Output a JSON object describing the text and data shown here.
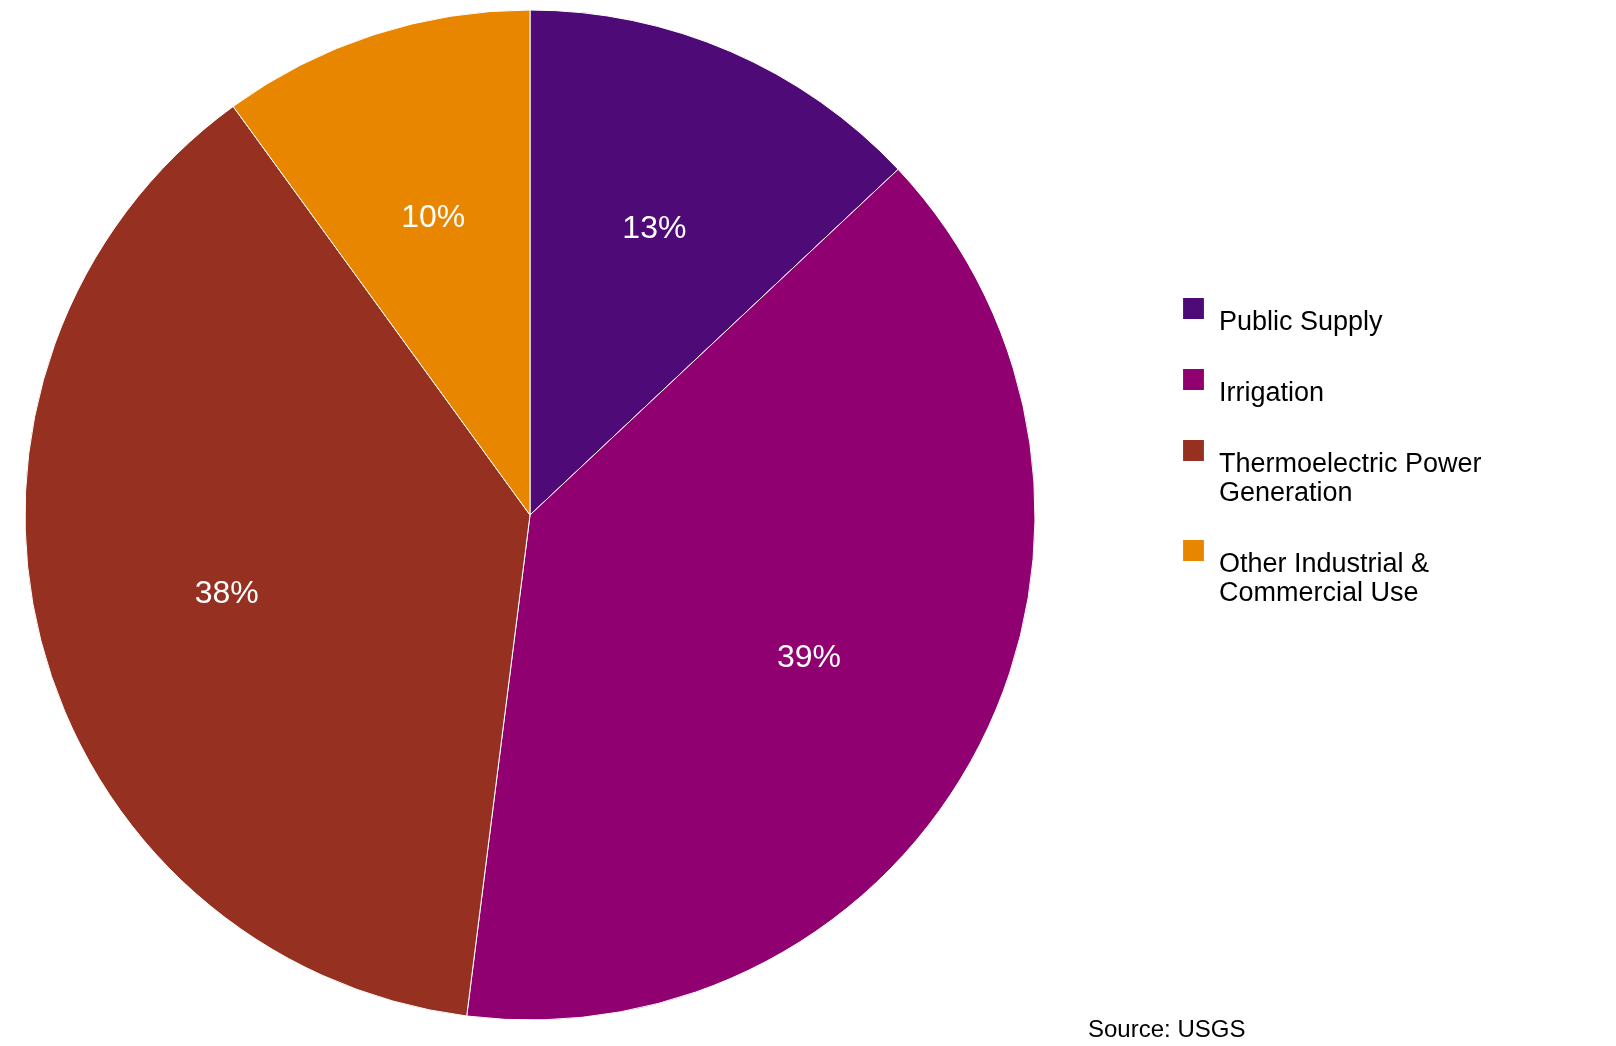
{
  "chart_data": {
    "type": "pie",
    "categories": [
      "Public Supply",
      "Irrigation",
      "Thermoelectric Power Generation",
      "Other Industrial & Commercial Use"
    ],
    "values": [
      13,
      39,
      38,
      10
    ],
    "value_labels": [
      "13%",
      "39%",
      "38%",
      "10%"
    ],
    "colors": [
      "#4e0b77",
      "#900070",
      "#963122",
      "#e88600"
    ],
    "legend": "right",
    "annotations": [
      "Source: USGS"
    ]
  }
}
